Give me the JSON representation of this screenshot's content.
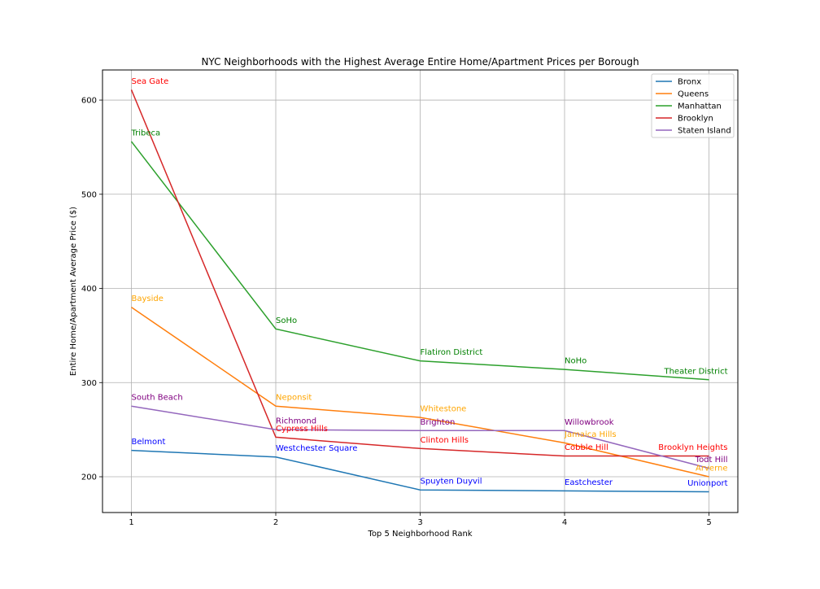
{
  "chart_data": {
    "type": "line",
    "title": "NYC Neighborhoods with the Highest Average Entire Home/Apartment Prices per Borough",
    "xlabel": "Top 5 Neighborhood Rank",
    "ylabel": "Entire Home/Apartment Average Price ($)",
    "x": [
      1,
      2,
      3,
      4,
      5
    ],
    "xlim": [
      0.8,
      5.2
    ],
    "ylim": [
      162,
      632
    ],
    "xticks": [
      "1",
      "2",
      "3",
      "4",
      "5"
    ],
    "yticks": [
      "200",
      "300",
      "400",
      "500",
      "600"
    ],
    "grid": true,
    "legend_position": "top-right",
    "series": [
      {
        "name": "Bronx",
        "color": "#1f77b4",
        "label_color": "#0000ff",
        "values": [
          228,
          221,
          186,
          185,
          184
        ],
        "labels": [
          "Belmont",
          "Westchester Square",
          "Spuyten Duyvil",
          "Eastchester",
          "Unionport"
        ]
      },
      {
        "name": "Queens",
        "color": "#ff7f0e",
        "label_color": "#ffa500",
        "values": [
          380,
          275,
          263,
          236,
          200
        ],
        "labels": [
          "Bayside",
          "Neponsit",
          "Whitestone",
          "Jamaica Hills",
          "Arverne"
        ]
      },
      {
        "name": "Manhattan",
        "color": "#2ca02c",
        "label_color": "#008000",
        "values": [
          556,
          357,
          323,
          314,
          303
        ],
        "labels": [
          "Tribeca",
          "SoHo",
          "Flatiron District",
          "NoHo",
          "Theater District"
        ]
      },
      {
        "name": "Brooklyn",
        "color": "#d62728",
        "label_color": "#ff0000",
        "values": [
          611,
          242,
          230,
          222,
          222
        ],
        "labels": [
          "Sea Gate",
          "Cypress Hills",
          "Clinton Hills",
          "Cobble Hill",
          "Brooklyn Heights"
        ]
      },
      {
        "name": "Staten Island",
        "color": "#9467bd",
        "label_color": "#800080",
        "values": [
          275,
          250,
          249,
          249,
          209
        ],
        "labels": [
          "South Beach",
          "Richmond",
          "Brighton",
          "Willowbrook",
          "Todt Hill"
        ]
      }
    ]
  }
}
